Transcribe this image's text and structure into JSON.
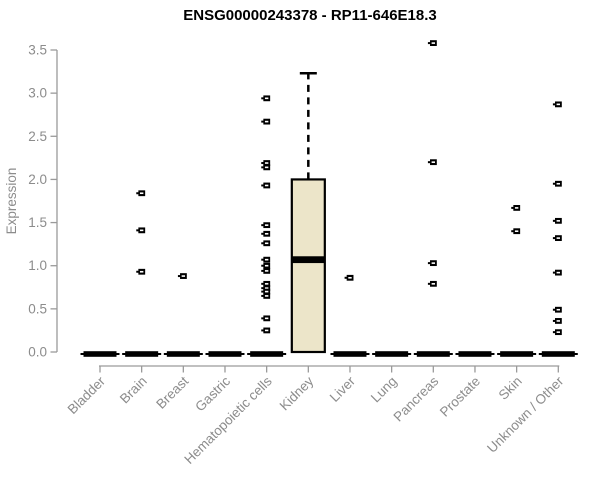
{
  "chart_data": {
    "type": "boxplot",
    "title": "ENSG00000243378 - RP11-646E18.3",
    "ylabel": "Expression",
    "xlabel": "",
    "ylim": [
      0.0,
      3.5
    ],
    "yticks": [
      "0.0",
      "0.5",
      "1.0",
      "1.5",
      "2.0",
      "2.5",
      "3.0",
      "3.5"
    ],
    "grid": false,
    "legend": "none",
    "categories": [
      "Bladder",
      "Brain",
      "Breast",
      "Gastric",
      "Hematopoietic cells",
      "Kidney",
      "Liver",
      "Lung",
      "Pancreas",
      "Prostate",
      "Skin",
      "Unknown / Other"
    ],
    "boxes": [
      {
        "category": "Bladder",
        "q1": 0,
        "median": 0,
        "q3": 0,
        "whisker_low": 0,
        "whisker_high": 0,
        "points": []
      },
      {
        "category": "Brain",
        "q1": 0,
        "median": 0,
        "q3": 0,
        "whisker_low": 0,
        "whisker_high": 0,
        "points": [
          1.84,
          1.41,
          0.93
        ]
      },
      {
        "category": "Breast",
        "q1": 0,
        "median": 0,
        "q3": 0,
        "whisker_low": 0,
        "whisker_high": 0,
        "points": [
          0.88
        ]
      },
      {
        "category": "Gastric",
        "q1": 0,
        "median": 0,
        "q3": 0,
        "whisker_low": 0,
        "whisker_high": 0,
        "points": []
      },
      {
        "category": "Hematopoietic cells",
        "q1": 0,
        "median": 0,
        "q3": 0,
        "whisker_low": 0,
        "whisker_high": 0,
        "points": [
          2.94,
          2.67,
          2.19,
          2.14,
          1.93,
          1.47,
          1.37,
          1.26,
          1.07,
          1.0,
          0.94,
          0.79,
          0.74,
          0.7,
          0.65,
          0.39,
          0.25
        ]
      },
      {
        "category": "Kidney",
        "q1": 0,
        "median": 1.07,
        "q3": 2.0,
        "whisker_low": 0,
        "whisker_high": 3.23,
        "points": []
      },
      {
        "category": "Liver",
        "q1": 0,
        "median": 0,
        "q3": 0,
        "whisker_low": 0,
        "whisker_high": 0,
        "points": [
          0.86
        ]
      },
      {
        "category": "Lung",
        "q1": 0,
        "median": 0,
        "q3": 0,
        "whisker_low": 0,
        "whisker_high": 0,
        "points": []
      },
      {
        "category": "Pancreas",
        "q1": 0,
        "median": 0,
        "q3": 0,
        "whisker_low": 0,
        "whisker_high": 0,
        "points": [
          3.58,
          2.2,
          1.03,
          0.79
        ]
      },
      {
        "category": "Prostate",
        "q1": 0,
        "median": 0,
        "q3": 0,
        "whisker_low": 0,
        "whisker_high": 0,
        "points": []
      },
      {
        "category": "Skin",
        "q1": 0,
        "median": 0,
        "q3": 0,
        "whisker_low": 0,
        "whisker_high": 0,
        "points": [
          1.67,
          1.4
        ]
      },
      {
        "category": "Unknown / Other",
        "q1": 0,
        "median": 0,
        "q3": 0,
        "whisker_low": 0,
        "whisker_high": 0,
        "points": [
          2.87,
          1.95,
          1.52,
          1.32,
          0.92,
          0.49,
          0.36,
          0.23
        ]
      }
    ],
    "colors": {
      "box_fill": "#ece5c9",
      "box_border": "#000000",
      "median": "#000000",
      "zero_bar": "#000000",
      "point": "#000000",
      "point_center": "#ffffff",
      "axis_line": "#9a9a9a",
      "tick_label": "#8c8c8c",
      "title": "#000000"
    }
  }
}
